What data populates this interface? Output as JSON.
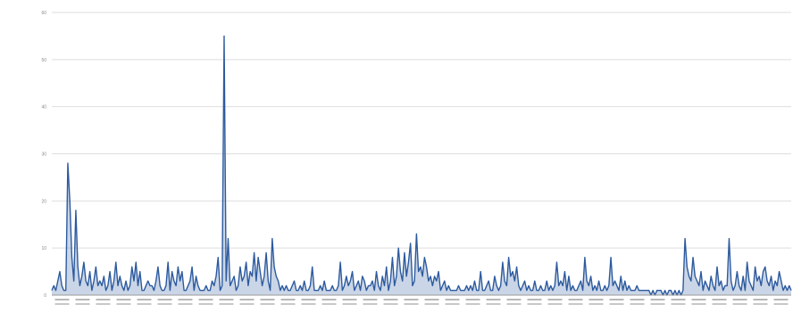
{
  "chart_data": {
    "type": "line",
    "title": "",
    "xlabel": "",
    "ylabel": "",
    "ylim": [
      0,
      60
    ],
    "yticks": [
      0,
      10,
      20,
      30,
      40,
      50,
      60
    ],
    "grid": true,
    "legend": "none",
    "series_color": "#2d5a9e",
    "x_tick_count": 36,
    "series": [
      {
        "values": [
          1,
          2,
          1,
          3,
          5,
          2,
          1,
          1,
          28,
          20,
          8,
          3,
          18,
          6,
          2,
          4,
          7,
          3,
          2,
          5,
          1,
          3,
          6,
          2,
          3,
          2,
          4,
          1,
          2,
          5,
          1,
          3,
          7,
          2,
          4,
          2,
          1,
          3,
          1,
          2,
          6,
          3,
          7,
          2,
          5,
          1,
          1,
          2,
          3,
          2,
          2,
          1,
          3,
          6,
          2,
          1,
          1,
          2,
          7,
          1,
          5,
          3,
          2,
          6,
          3,
          5,
          1,
          1,
          2,
          3,
          6,
          1,
          4,
          2,
          1,
          1,
          1,
          2,
          1,
          1,
          3,
          2,
          4,
          8,
          1,
          2,
          55,
          3,
          12,
          2,
          3,
          4,
          1,
          2,
          6,
          3,
          4,
          7,
          2,
          5,
          4,
          9,
          3,
          8,
          5,
          2,
          4,
          9,
          3,
          1,
          12,
          6,
          4,
          3,
          1,
          2,
          1,
          2,
          1,
          1,
          2,
          3,
          1,
          1,
          2,
          1,
          3,
          1,
          1,
          2,
          6,
          1,
          1,
          1,
          2,
          1,
          3,
          1,
          1,
          1,
          2,
          1,
          1,
          2,
          7,
          1,
          2,
          4,
          2,
          3,
          5,
          1,
          2,
          3,
          1,
          4,
          3,
          1,
          2,
          2,
          3,
          1,
          5,
          2,
          1,
          4,
          2,
          6,
          1,
          3,
          8,
          2,
          4,
          10,
          5,
          3,
          9,
          4,
          7,
          11,
          2,
          3,
          13,
          5,
          6,
          4,
          8,
          6,
          3,
          4,
          2,
          4,
          3,
          5,
          1,
          2,
          3,
          1,
          2,
          1,
          1,
          1,
          1,
          2,
          1,
          1,
          1,
          2,
          1,
          2,
          1,
          3,
          1,
          1,
          5,
          1,
          1,
          2,
          3,
          1,
          1,
          4,
          2,
          1,
          2,
          7,
          3,
          2,
          8,
          4,
          5,
          3,
          6,
          2,
          1,
          2,
          3,
          1,
          2,
          1,
          1,
          3,
          1,
          1,
          2,
          1,
          1,
          3,
          1,
          2,
          1,
          2,
          7,
          2,
          3,
          2,
          5,
          1,
          4,
          1,
          2,
          1,
          1,
          2,
          3,
          1,
          8,
          3,
          2,
          4,
          1,
          2,
          1,
          3,
          1,
          1,
          2,
          1,
          2,
          8,
          2,
          3,
          2,
          1,
          4,
          1,
          3,
          1,
          2,
          1,
          1,
          1,
          2,
          1,
          1,
          1,
          1,
          1,
          1,
          0,
          1,
          0,
          1,
          1,
          1,
          0,
          1,
          0,
          1,
          1,
          0,
          1,
          0,
          1,
          0,
          1,
          12,
          6,
          4,
          3,
          8,
          4,
          3,
          2,
          5,
          1,
          3,
          2,
          1,
          4,
          2,
          1,
          6,
          2,
          3,
          1,
          2,
          2,
          12,
          3,
          1,
          2,
          5,
          2,
          1,
          4,
          1,
          7,
          3,
          2,
          1,
          6,
          3,
          4,
          2,
          5,
          6,
          3,
          2,
          4,
          1,
          3,
          2,
          5,
          3,
          1,
          2,
          1,
          2,
          1
        ]
      }
    ]
  }
}
